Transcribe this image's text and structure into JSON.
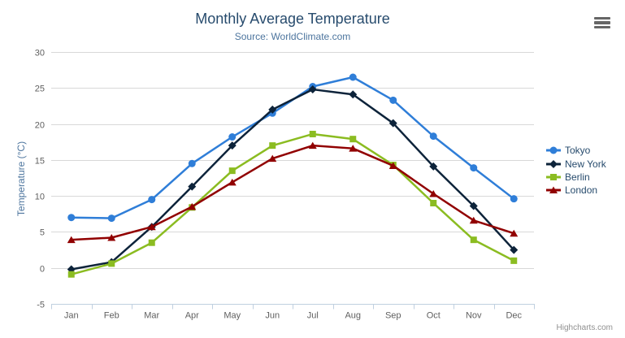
{
  "header": {
    "title": "Monthly Average Temperature",
    "subtitle": "Source: WorldClimate.com"
  },
  "export_menu": {
    "tooltip": "Chart context menu"
  },
  "credits": {
    "text": "Highcharts.com"
  },
  "colors": {
    "background": "#ffffff",
    "grid_line": "#d8d8d8",
    "axis_line": "#c0d0e0",
    "tick_label": "#606060",
    "title": "#274b6d",
    "subtitle": "#4d759e",
    "axis_title": "#4d759e",
    "legend_text": "#274b6d",
    "credits_text": "#909090",
    "menu_icon": "#666666"
  },
  "chart_data": {
    "type": "line",
    "title": "Monthly Average Temperature",
    "subtitle": "Source: WorldClimate.com",
    "xlabel": "",
    "ylabel": "Temperature (°C)",
    "ylim": [
      -5,
      30
    ],
    "yticks": [
      -5,
      0,
      5,
      10,
      15,
      20,
      25,
      30
    ],
    "grid": "horizontal",
    "legend_position": "right",
    "categories": [
      "Jan",
      "Feb",
      "Mar",
      "Apr",
      "May",
      "Jun",
      "Jul",
      "Aug",
      "Sep",
      "Oct",
      "Nov",
      "Dec"
    ],
    "series": [
      {
        "name": "Tokyo",
        "color": "#2f7ed8",
        "marker": "circle",
        "values": [
          7.0,
          6.9,
          9.5,
          14.5,
          18.2,
          21.5,
          25.2,
          26.5,
          23.3,
          18.3,
          13.9,
          9.6
        ]
      },
      {
        "name": "New York",
        "color": "#0d233a",
        "marker": "diamond",
        "values": [
          -0.2,
          0.8,
          5.7,
          11.3,
          17.0,
          22.0,
          24.8,
          24.1,
          20.1,
          14.1,
          8.6,
          2.5
        ]
      },
      {
        "name": "Berlin",
        "color": "#8bbc21",
        "marker": "square",
        "values": [
          -0.9,
          0.6,
          3.5,
          8.4,
          13.5,
          17.0,
          18.6,
          17.9,
          14.3,
          9.0,
          3.9,
          1.0
        ]
      },
      {
        "name": "London",
        "color": "#910000",
        "marker": "triangle",
        "values": [
          3.9,
          4.2,
          5.7,
          8.5,
          11.9,
          15.2,
          17.0,
          16.6,
          14.2,
          10.3,
          6.6,
          4.8
        ]
      }
    ]
  }
}
